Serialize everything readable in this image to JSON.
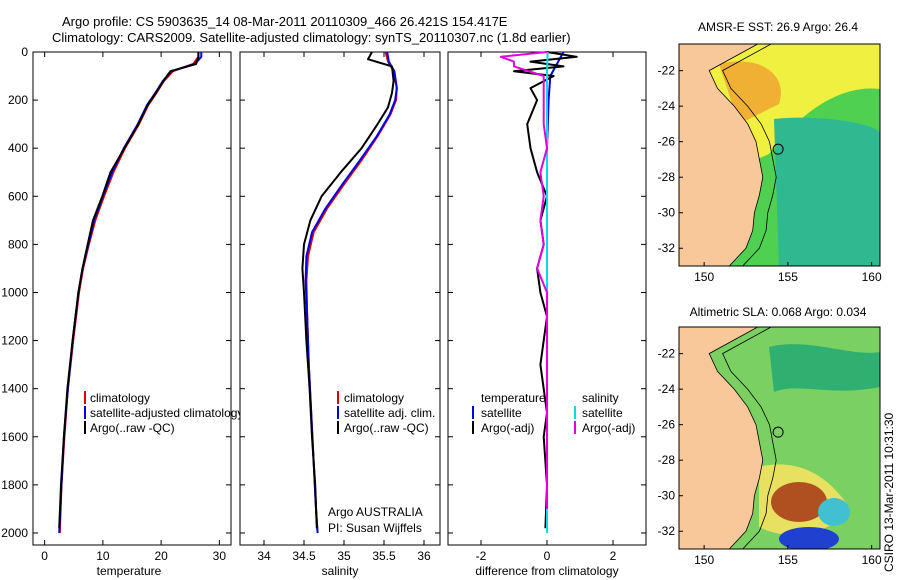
{
  "title_line1": "Argo profile: CS 5903635_14 08-Mar-2011 20110309_466 26.421S 154.417E",
  "title_line2": "Climatology: CARS2009. Satellite-adjusted climatology: synTS_20110307.nc (1.8d earlier)",
  "credit": "CSIRO 13-Mar-2011 10:31:30",
  "colors": {
    "clim": "#e00000",
    "sat": "#0000e6",
    "argo": "#000000",
    "sat_sal": "#00e0e0",
    "argo_sal": "#e000e0",
    "land": "#f8c89a",
    "sea_high": "#f0f040",
    "sea_mid": "#50d050",
    "sea_low": "#30b890"
  },
  "chart_data": [
    {
      "type": "line",
      "id": "temperature",
      "xlabel": "temperature",
      "ylabel": "",
      "xlim": [
        -2,
        32
      ],
      "ylim": [
        2050,
        0
      ],
      "xticks": [
        0,
        10,
        20,
        30
      ],
      "yticks": [
        0,
        200,
        400,
        600,
        800,
        1000,
        1200,
        1400,
        1600,
        1800,
        2000
      ],
      "legend": [
        "climatology",
        "satellite-adjusted climatology",
        "Argo(..raw -QC)"
      ],
      "series": [
        {
          "name": "climatology",
          "depth": [
            0,
            20,
            50,
            80,
            120,
            170,
            220,
            300,
            400,
            500,
            600,
            700,
            800,
            900,
            1000,
            1200,
            1400,
            1600,
            1800,
            2000
          ],
          "values": [
            26.4,
            26.4,
            25.5,
            22,
            20.5,
            19.2,
            17.8,
            16.2,
            13.8,
            11.8,
            10.2,
            8.7,
            7.6,
            6.6,
            5.9,
            4.9,
            4.0,
            3.4,
            2.9,
            2.6
          ]
        },
        {
          "name": "satellite-adjusted climatology",
          "depth": [
            0,
            20,
            50,
            80,
            120,
            170,
            220,
            300,
            400,
            500,
            600,
            700,
            800,
            900,
            1000,
            1200,
            1400,
            1600,
            1800,
            2000
          ],
          "values": [
            26.9,
            26.9,
            25.8,
            21.8,
            20.3,
            19.0,
            17.6,
            16.0,
            13.6,
            11.6,
            10.0,
            8.5,
            7.5,
            6.5,
            5.8,
            4.8,
            4.0,
            3.3,
            2.9,
            2.5
          ]
        },
        {
          "name": "Argo(..raw -QC)",
          "depth": [
            0,
            20,
            50,
            80,
            120,
            170,
            220,
            300,
            400,
            500,
            600,
            700,
            800,
            900,
            1000,
            1200,
            1400,
            1600,
            1800,
            1980
          ],
          "values": [
            26.4,
            26.4,
            26.0,
            21.6,
            20.4,
            19.1,
            17.7,
            16.1,
            13.7,
            11.3,
            9.9,
            8.3,
            7.4,
            6.5,
            5.8,
            4.8,
            3.9,
            3.3,
            2.8,
            2.5
          ]
        }
      ]
    },
    {
      "type": "line",
      "id": "salinity",
      "xlabel": "salinity",
      "xlim": [
        33.7,
        36.2
      ],
      "ylim": [
        2050,
        0
      ],
      "xticks": [
        34,
        34.5,
        35,
        35.5,
        36
      ],
      "legend": [
        "climatology",
        "satellite adj. clim.",
        "Argo(..raw -QC)"
      ],
      "annotation": [
        "Argo AUSTRALIA",
        "PI: Susan Wijffels"
      ],
      "series": [
        {
          "name": "climatology",
          "depth": [
            0,
            40,
            80,
            150,
            200,
            260,
            350,
            450,
            550,
            650,
            750,
            850,
            950,
            1100,
            1300,
            1500,
            1700,
            1900,
            2000
          ],
          "values": [
            35.52,
            35.55,
            35.62,
            35.66,
            35.65,
            35.58,
            35.42,
            35.22,
            35.0,
            34.79,
            34.62,
            34.55,
            34.53,
            34.54,
            34.56,
            34.59,
            34.62,
            34.65,
            34.67
          ]
        },
        {
          "name": "satellite adj. clim.",
          "depth": [
            0,
            40,
            80,
            150,
            200,
            260,
            350,
            450,
            550,
            650,
            750,
            850,
            950,
            1100,
            1300,
            1500,
            1700,
            1900,
            2000
          ],
          "values": [
            35.54,
            35.56,
            35.63,
            35.66,
            35.64,
            35.57,
            35.41,
            35.2,
            34.98,
            34.77,
            34.6,
            34.53,
            34.52,
            34.54,
            34.56,
            34.59,
            34.62,
            34.65,
            34.67
          ]
        },
        {
          "name": "Argo(..raw -QC)",
          "depth": [
            0,
            30,
            60,
            120,
            170,
            230,
            300,
            400,
            500,
            600,
            700,
            800,
            900,
            1000,
            1200,
            1400,
            1600,
            1800,
            1980
          ],
          "values": [
            35.35,
            35.3,
            35.6,
            35.62,
            35.6,
            35.55,
            35.42,
            35.22,
            34.96,
            34.72,
            34.58,
            34.5,
            34.48,
            34.5,
            34.53,
            34.57,
            34.6,
            34.64,
            34.66
          ]
        }
      ]
    },
    {
      "type": "line",
      "id": "difference",
      "xlabel": "difference from climatology",
      "xlim": [
        -3,
        3
      ],
      "ylim": [
        2050,
        0
      ],
      "xticks": [
        -2,
        0,
        2
      ],
      "legend_left_title": "temperature",
      "legend_right_title": "salinity",
      "legend_left": [
        "satellite",
        "Argo(-adj)"
      ],
      "legend_right": [
        "satellite",
        "Argo(-adj)"
      ],
      "series": [
        {
          "name": "temperature satellite",
          "depth": [
            0,
            50,
            100,
            200,
            400,
            800,
            1200,
            1600,
            2000
          ],
          "values": [
            0.5,
            0.3,
            0.1,
            0.05,
            0.0,
            0.0,
            0.0,
            0.0,
            0.0
          ]
        },
        {
          "name": "temperature Argo(-adj)",
          "depth": [
            0,
            20,
            40,
            60,
            80,
            100,
            150,
            200,
            300,
            400,
            500,
            600,
            700,
            800,
            900,
            1000,
            1100,
            1200,
            1300,
            1400,
            1500,
            1600,
            1800,
            1980
          ],
          "values": [
            0.0,
            0.9,
            -0.5,
            0.5,
            -1.0,
            0.2,
            -0.5,
            -0.3,
            -0.6,
            -0.5,
            -0.3,
            0.0,
            -0.2,
            -0.1,
            -0.3,
            -0.2,
            0.0,
            -0.1,
            -0.2,
            -0.1,
            0.0,
            -0.1,
            0.0,
            -0.05
          ]
        },
        {
          "name": "salinity satellite",
          "depth": [
            0,
            50,
            100,
            300,
            600,
            1000,
            1400,
            2000
          ],
          "values": [
            0.02,
            0.01,
            0.0,
            0.0,
            0.0,
            0.0,
            0.0,
            0.0
          ]
        },
        {
          "name": "salinity Argo(-adj)",
          "depth": [
            0,
            20,
            40,
            60,
            100,
            200,
            300,
            400,
            500,
            600,
            700,
            800,
            900,
            1000,
            1400,
            1900
          ],
          "values": [
            0.0,
            -1.4,
            -1.0,
            -1.0,
            -0.1,
            -0.1,
            -0.1,
            0.0,
            -0.2,
            -0.1,
            -0.2,
            -0.1,
            -0.3,
            0.0,
            0.0,
            0.0
          ]
        }
      ]
    },
    {
      "type": "heatmap",
      "id": "sst_map",
      "title": "AMSR-E SST: 26.9 Argo: 26.4",
      "xticks": [
        150,
        155,
        160
      ],
      "yticks": [
        -22,
        -24,
        -26,
        -28,
        -30,
        -32
      ],
      "xlim": [
        148.5,
        160.5
      ],
      "ylim": [
        -33,
        -20.5
      ],
      "marker": {
        "lon": 154.417,
        "lat": -26.421
      }
    },
    {
      "type": "heatmap",
      "id": "sla_map",
      "title": "Altimetric SLA: 0.068 Argo: 0.034",
      "xticks": [
        150,
        155,
        160
      ],
      "yticks": [
        -22,
        -24,
        -26,
        -28,
        -30,
        -32
      ],
      "xlim": [
        148.5,
        160.5
      ],
      "ylim": [
        -33,
        -20.5
      ],
      "marker": {
        "lon": 154.417,
        "lat": -26.421
      }
    }
  ]
}
